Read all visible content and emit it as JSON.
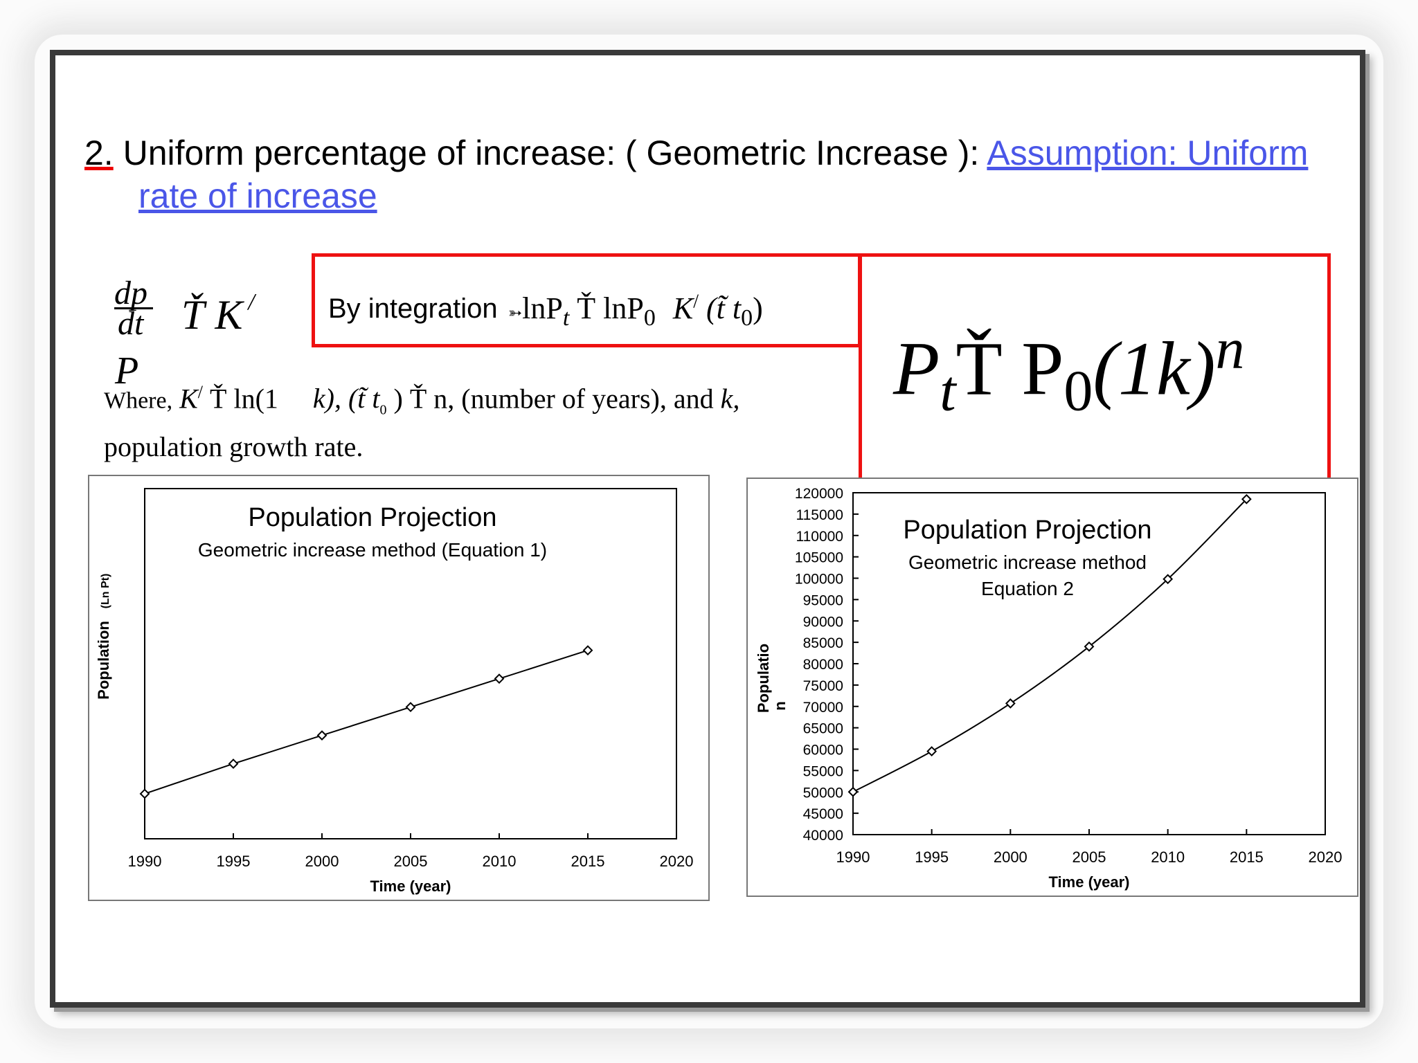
{
  "heading": {
    "number": "2.",
    "title": "Uniform percentage of increase: ( Geometric Increase ):",
    "link_line1": "Assumption: Uniform",
    "link_line2": "rate of increase"
  },
  "formula": {
    "derivative_num": "dp",
    "derivative_den": "dt",
    "derivative_rhs": "Ť K",
    "derivative_sup": "/",
    "derivative_p": "P",
    "integration_label": "By integration",
    "integration_expr": "lnP",
    "integration_sub_t": "t",
    "integration_mid": "Ť lnP",
    "integration_sub_0": "0",
    "integration_k": "K",
    "integration_sup": "/",
    "integration_paren": "(t̃ t",
    "integration_paren_sub": "0",
    "integration_close": ")",
    "big_p": "P",
    "big_sub_t": "t",
    "big_mid": "Ť P",
    "big_sub_0": "0",
    "big_paren": "(1k)",
    "big_sup_n": "n",
    "where_prefix": "Where,",
    "where_k": "K",
    "where_sup": "/",
    "where_ln": "Ť ln(1",
    "where_k2": "k), (t̃ t",
    "where_t0": "0",
    "where_n": ") Ť n,",
    "where_desc": "(number of years), and",
    "where_kvar": "k,",
    "where_line2": "population growth rate."
  },
  "chart_data": [
    {
      "type": "line",
      "title": "Population Projection",
      "subtitle": "Geometric increase method (Equation 1)",
      "xlabel": "Time (year)",
      "ylabel": "Population",
      "ylabel_suffix": "(Ln Pt)",
      "x": [
        1990,
        1995,
        2000,
        2005,
        2010,
        2015
      ],
      "values": [
        10.82,
        11.0,
        11.17,
        11.34,
        11.51,
        11.68
      ],
      "xlim": [
        1990,
        2020
      ],
      "ylim": [
        10.55,
        12.65
      ],
      "xticks": [
        "1990",
        "1995",
        "2000",
        "2005",
        "2010",
        "2015",
        "2020"
      ],
      "yticks": [],
      "marker": "diamond",
      "grid": false
    },
    {
      "type": "line",
      "title": "Population Projection",
      "subtitle": "Geometric increase method",
      "subtitle2": "Equation 2",
      "xlabel": "Time (year)",
      "ylabel": "Populatio",
      "ylabel_line2": "n",
      "x": [
        1990,
        1995,
        2000,
        2005,
        2010,
        2015
      ],
      "values": [
        50000,
        59500,
        70700,
        84000,
        99800,
        118500
      ],
      "xlim": [
        1990,
        2020
      ],
      "ylim": [
        40000,
        120000
      ],
      "xticks": [
        "1990",
        "1995",
        "2000",
        "2005",
        "2010",
        "2015",
        "2020"
      ],
      "yticks": [
        "120000",
        "115000",
        "110000",
        "105000",
        "100000",
        "95000",
        "90000",
        "85000",
        "80000",
        "75000",
        "70000",
        "65000",
        "60000",
        "55000",
        "50000",
        "45000",
        "40000"
      ],
      "marker": "diamond",
      "grid": false
    }
  ]
}
